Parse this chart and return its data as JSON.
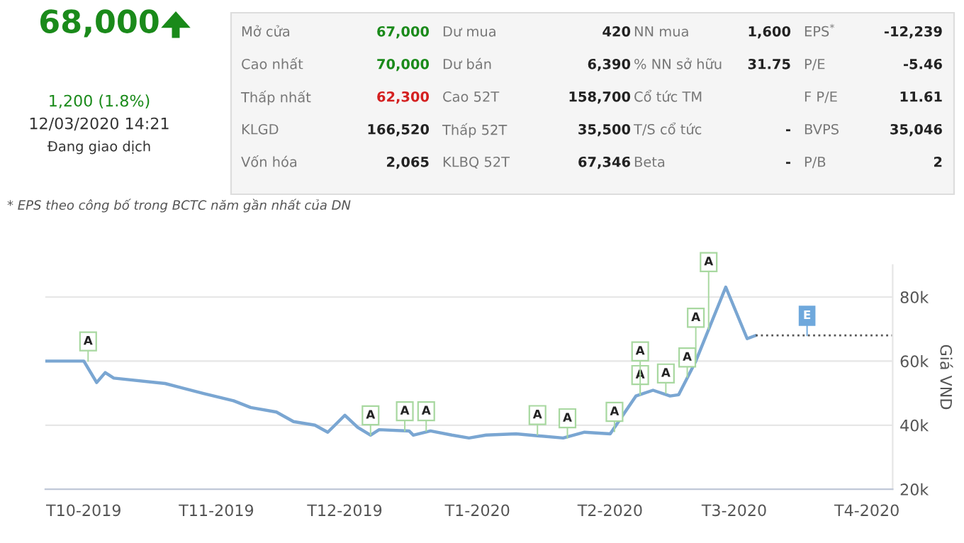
{
  "chart_data": {
    "type": "line",
    "ylabel": "Giá VND",
    "x": [
      "2019-09-22",
      "2019-10-01",
      "2019-10-04",
      "2019-10-06",
      "2019-10-08",
      "2019-10-20",
      "2019-10-29",
      "2019-11-05",
      "2019-11-09",
      "2019-11-15",
      "2019-11-19",
      "2019-11-24",
      "2019-11-27",
      "2019-12-01",
      "2019-12-04",
      "2019-12-07",
      "2019-12-09",
      "2019-12-16",
      "2019-12-17",
      "2019-12-21",
      "2019-12-26",
      "2019-12-30",
      "2020-01-03",
      "2020-01-10",
      "2020-01-21",
      "2020-01-26",
      "2020-02-01",
      "2020-02-07",
      "2020-02-11",
      "2020-02-15",
      "2020-02-17",
      "2020-02-21",
      "2020-02-28",
      "2020-03-04",
      "2020-03-06"
    ],
    "series": [
      {
        "color": "#7aa6d2",
        "values": [
          60000,
          60000,
          53300,
          56400,
          54700,
          53000,
          49900,
          47600,
          45500,
          44100,
          41100,
          40000,
          37800,
          43100,
          39300,
          36900,
          38600,
          38200,
          36900,
          38200,
          36900,
          36000,
          36900,
          37300,
          36000,
          37800,
          37300,
          49100,
          50900,
          49100,
          49500,
          60000,
          83100,
          67000,
          68000
        ]
      }
    ],
    "xlim": [
      "2019-09-22",
      "2020-04-07"
    ],
    "xticks": [
      {
        "value": "2019-10-01",
        "label": "T10-2019"
      },
      {
        "value": "2019-11-01",
        "label": "T11-2019"
      },
      {
        "value": "2019-12-01",
        "label": "T12-2019"
      },
      {
        "value": "2020-01-01",
        "label": "T1-2020"
      },
      {
        "value": "2020-02-01",
        "label": "T2-2020"
      },
      {
        "value": "2020-03-01",
        "label": "T3-2020"
      },
      {
        "value": "2020-04-01",
        "label": "T4-2020"
      }
    ],
    "ylim": [
      20000,
      90000
    ],
    "yticks": [
      {
        "value": 20000,
        "label": "20k"
      },
      {
        "value": 40000,
        "label": "40k"
      },
      {
        "value": 60000,
        "label": "60k"
      },
      {
        "value": 80000,
        "label": "80k"
      }
    ],
    "grid": "y",
    "ref_lines": [
      {
        "axis": "y",
        "value": 68000,
        "line_style": "dotted",
        "color": "#555555"
      }
    ],
    "annotations": [
      "68,000",
      "1,200 (1.8%)",
      "12/03/2020 14:21",
      "Đang giao dịch",
      "Mở cửa",
      "67,000",
      "Dư mua",
      "420",
      "NN mua",
      "1,600",
      "EPS$^{*}$",
      "-12,239",
      "Cao nhất",
      "70,000",
      "Dư bán",
      "6,390",
      "% NN sở hữu",
      "31.75",
      "P/E",
      "-5.46",
      "Thấp nhất",
      "62,300",
      "Cao 52T",
      "158,700",
      "Cổ tức TM",
      "F P/E",
      "11.61",
      "KLGD",
      "166,520",
      "Thấp 52T",
      "35,500",
      "T/S cổ tức",
      "-",
      "BVPS",
      "35,046",
      "Vốn hóa",
      "2,065",
      "KLBQ 52T",
      "67,346",
      "Beta",
      "-",
      "P/B",
      "2",
      "* EPS theo công bố trong BCTC năm gần nhất của DN",
      {
        "text": "A",
        "x": "2019-10-02",
        "y": 60000
      },
      {
        "text": "A",
        "x": "2019-12-07",
        "y": 36900
      },
      {
        "text": "A",
        "x": "2019-12-15",
        "y": 38200
      },
      {
        "text": "A",
        "x": "2019-12-20",
        "y": 38200
      },
      {
        "text": "A",
        "x": "2020-01-15",
        "y": 37000
      },
      {
        "text": "A",
        "x": "2020-01-22",
        "y": 36000
      },
      {
        "text": "A",
        "x": "2020-02-02",
        "y": 38000
      },
      {
        "text": "A",
        "x": "2020-02-08",
        "y": 49500
      },
      {
        "text": "A",
        "x": "2020-02-08",
        "y": 49500
      },
      {
        "text": "A",
        "x": "2020-02-14",
        "y": 50000
      },
      {
        "text": "A",
        "x": "2020-02-19",
        "y": 55000
      },
      {
        "text": "A",
        "x": "2020-02-21",
        "y": 60000
      },
      {
        "text": "A",
        "x": "2020-02-24",
        "y": 70000
      },
      {
        "text": "E",
        "x": "2020-03-18",
        "y": 68000
      }
    ]
  }
}
